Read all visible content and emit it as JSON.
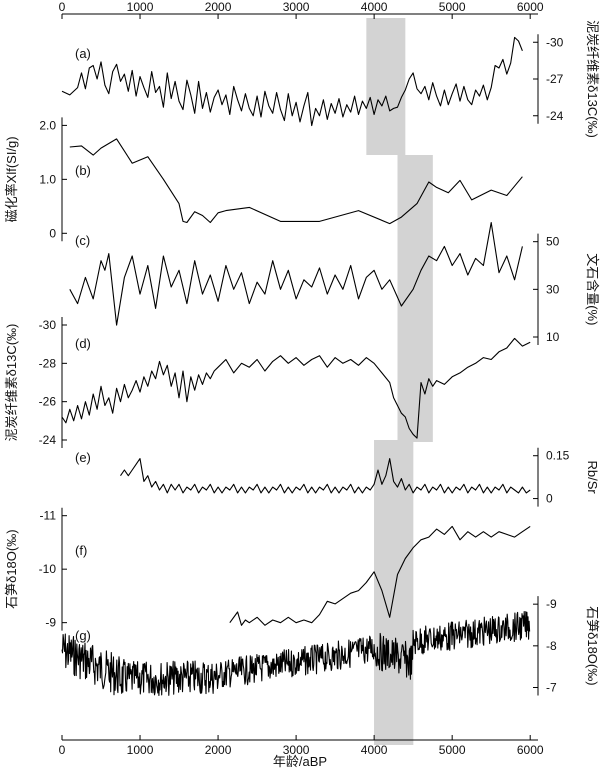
{
  "figure": {
    "x_axis_title": "年龄/aBP",
    "x_ticks": [
      0,
      1000,
      2000,
      3000,
      4000,
      5000,
      6000
    ],
    "shade_color": "#d3d3d3",
    "line_color": "#000000"
  },
  "chart_data": [
    {
      "type": "line",
      "panel_label": "(a)",
      "ylabel": "泥炭纤维素δ13C(‰)",
      "y_axis_side": "right",
      "y_ticks": [
        -30,
        -27,
        -24
      ],
      "ylim": [
        -23,
        -31
      ],
      "shaded_interval": [
        3900,
        4400
      ],
      "x": [
        0,
        100,
        200,
        250,
        300,
        350,
        400,
        450,
        500,
        550,
        600,
        650,
        700,
        750,
        800,
        850,
        900,
        950,
        1000,
        1050,
        1100,
        1150,
        1200,
        1250,
        1300,
        1350,
        1400,
        1450,
        1500,
        1550,
        1600,
        1650,
        1700,
        1750,
        1800,
        1850,
        1900,
        1950,
        2000,
        2050,
        2100,
        2150,
        2200,
        2250,
        2300,
        2350,
        2400,
        2450,
        2500,
        2550,
        2600,
        2650,
        2700,
        2750,
        2800,
        2850,
        2900,
        2950,
        3000,
        3050,
        3100,
        3150,
        3200,
        3250,
        3300,
        3350,
        3400,
        3450,
        3500,
        3550,
        3600,
        3650,
        3700,
        3750,
        3800,
        3850,
        3900,
        3950,
        4000,
        4050,
        4100,
        4150,
        4200,
        4250,
        4300,
        4350,
        4400,
        4450,
        4500,
        4550,
        4600,
        4650,
        4700,
        4750,
        4800,
        4850,
        4900,
        4950,
        5000,
        5050,
        5100,
        5150,
        5200,
        5250,
        5300,
        5350,
        5400,
        5450,
        5500,
        5550,
        5600,
        5650,
        5700,
        5750,
        5800,
        5850,
        5900
      ],
      "values": [
        -26,
        -25.7,
        -26.3,
        -27.5,
        -26.2,
        -27.9,
        -28.1,
        -27,
        -28.4,
        -26.5,
        -25.8,
        -27.6,
        -28.2,
        -26.8,
        -27.4,
        -26,
        -27.7,
        -25.6,
        -27.2,
        -26.3,
        -25.5,
        -27.6,
        -25.9,
        -26.4,
        -24.7,
        -27.5,
        -25.4,
        -26.8,
        -25.2,
        -24.5,
        -26.9,
        -25.7,
        -24.2,
        -26.8,
        -24.6,
        -25.9,
        -24.3,
        -25.5,
        -26.1,
        -24.9,
        -25.7,
        -24.1,
        -26.4,
        -25.3,
        -24.4,
        -25.8,
        -24.6,
        -24,
        -25.6,
        -23.9,
        -26,
        -24.8,
        -24.2,
        -25.9,
        -24.5,
        -23.6,
        -25.8,
        -24,
        -25.1,
        -23.5,
        -24.8,
        -25.9,
        -23.2,
        -24.6,
        -24,
        -25.3,
        -23.7,
        -25,
        -24.2,
        -25.4,
        -23.9,
        -24.9,
        -24.3,
        -25.6,
        -24.1,
        -25.2,
        -24.6,
        -25.5,
        -24.1,
        -25.3,
        -24.8,
        -25.6,
        -24.4,
        -24.6,
        -24.7,
        -25.5,
        -26.1,
        -27,
        -27.5,
        -26.2,
        -25.8,
        -26.4,
        -25.3,
        -26.7,
        -25.6,
        -24.8,
        -26.1,
        -24.9,
        -25.8,
        -26.6,
        -25.2,
        -26.4,
        -25.3,
        -24.9,
        -26.1,
        -25.6,
        -26.5,
        -25.3,
        -26.3,
        -28.1,
        -27.9,
        -28.6,
        -27.4,
        -28.3,
        -30.4,
        -30.1,
        -29.3
      ]
    },
    {
      "type": "line",
      "panel_label": "(b)",
      "ylabel": "磁化率Xlf(SI/g)",
      "y_axis_side": "left",
      "y_ticks": [
        0,
        1.0,
        2.0
      ],
      "y_tick_labels": [
        "0",
        "1.0",
        "2.0"
      ],
      "ylim": [
        -0.05,
        2.1
      ],
      "shaded_interval": [
        4300,
        4750
      ],
      "x": [
        100,
        250,
        400,
        500,
        700,
        900,
        1100,
        1300,
        1500,
        1550,
        1600,
        1700,
        1800,
        1900,
        2000,
        2100,
        2400,
        2800,
        3300,
        3800,
        4200,
        4350,
        4550,
        4700,
        4800,
        4950,
        5100,
        5250,
        5500,
        5700,
        5900
      ],
      "values": [
        1.6,
        1.62,
        1.45,
        1.58,
        1.75,
        1.3,
        1.42,
        1.0,
        0.55,
        0.22,
        0.2,
        0.4,
        0.33,
        0.2,
        0.38,
        0.42,
        0.48,
        0.22,
        0.22,
        0.42,
        0.18,
        0.3,
        0.55,
        0.95,
        0.85,
        0.75,
        0.98,
        0.62,
        0.8,
        0.7,
        1.05
      ]
    },
    {
      "type": "line",
      "panel_label": "(c)",
      "ylabel": "文石含量(%)",
      "y_axis_side": "right",
      "y_ticks": [
        10,
        30,
        50
      ],
      "ylim": [
        10,
        57
      ],
      "shaded_interval": [
        4300,
        4750
      ],
      "x": [
        100,
        200,
        300,
        400,
        500,
        550,
        600,
        700,
        800,
        900,
        1000,
        1100,
        1200,
        1300,
        1400,
        1500,
        1600,
        1700,
        1800,
        1900,
        2000,
        2100,
        2200,
        2300,
        2400,
        2500,
        2600,
        2700,
        2800,
        2900,
        3000,
        3100,
        3200,
        3300,
        3400,
        3500,
        3600,
        3700,
        3800,
        3900,
        4000,
        4100,
        4200,
        4350,
        4500,
        4600,
        4700,
        4800,
        4900,
        5000,
        5100,
        5200,
        5300,
        5400,
        5500,
        5600,
        5700,
        5800,
        5900
      ],
      "values": [
        30,
        24,
        35,
        26,
        42,
        38,
        45,
        15,
        35,
        44,
        28,
        40,
        22,
        44,
        31,
        38,
        24,
        42,
        28,
        36,
        25,
        40,
        30,
        37,
        24,
        33,
        28,
        42,
        30,
        38,
        26,
        34,
        31,
        39,
        28,
        36,
        30,
        40,
        26,
        35,
        38,
        30,
        34,
        23,
        30,
        38,
        44,
        42,
        48,
        40,
        45,
        36,
        43,
        40,
        58,
        37,
        44,
        34,
        48
      ]
    },
    {
      "type": "line",
      "panel_label": "(d)",
      "ylabel": "泥炭纤维素δ13C(‰)",
      "y_axis_side": "left",
      "y_ticks": [
        -30,
        -28,
        -26,
        -24
      ],
      "ylim": [
        -24,
        -30
      ],
      "shaded_interval": [
        4300,
        4750
      ],
      "x": [
        0,
        50,
        100,
        150,
        200,
        250,
        300,
        350,
        400,
        450,
        500,
        550,
        600,
        650,
        700,
        750,
        800,
        850,
        900,
        950,
        1000,
        1050,
        1100,
        1150,
        1200,
        1250,
        1300,
        1350,
        1400,
        1450,
        1500,
        1550,
        1600,
        1650,
        1700,
        1750,
        1800,
        1850,
        1900,
        1950,
        2000,
        2100,
        2200,
        2300,
        2400,
        2500,
        2600,
        2700,
        2800,
        2900,
        3000,
        3100,
        3200,
        3300,
        3400,
        3500,
        3600,
        3700,
        3800,
        3900,
        4000,
        4100,
        4200,
        4250,
        4300,
        4350,
        4400,
        4450,
        4500,
        4550,
        4600,
        4650,
        4700,
        4750,
        4800,
        4900,
        5000,
        5100,
        5200,
        5300,
        5400,
        5500,
        5600,
        5700,
        5800,
        5900,
        6000
      ],
      "values": [
        -25.2,
        -24.9,
        -25.6,
        -25,
        -25.8,
        -25.1,
        -26,
        -25.3,
        -26.4,
        -25.6,
        -26.8,
        -25.8,
        -26.2,
        -25.4,
        -26.7,
        -26,
        -26.9,
        -26.2,
        -26.6,
        -27.1,
        -26.5,
        -27.3,
        -26.8,
        -27.6,
        -27.2,
        -28.1,
        -27.4,
        -27.9,
        -26.8,
        -27.5,
        -26.2,
        -27.6,
        -26,
        -27.3,
        -26.6,
        -27.4,
        -26.9,
        -27.5,
        -27.2,
        -27.6,
        -27.8,
        -28.2,
        -27.5,
        -28,
        -27.8,
        -28.2,
        -27.6,
        -28.1,
        -28.4,
        -28,
        -28.3,
        -27.9,
        -28.2,
        -28.4,
        -27.8,
        -28.3,
        -28,
        -28.2,
        -27.9,
        -28.3,
        -28,
        -27.5,
        -27,
        -26.2,
        -25.8,
        -25.4,
        -25.2,
        -24.6,
        -24.3,
        -24.1,
        -27,
        -26.4,
        -27.2,
        -26.8,
        -27.1,
        -26.9,
        -27.3,
        -27.5,
        -27.8,
        -28,
        -28.3,
        -28.2,
        -28.6,
        -28.8,
        -29.3,
        -28.9,
        -29.1
      ]
    },
    {
      "type": "line",
      "panel_label": "(e)",
      "ylabel": "Rb/Sr",
      "y_axis_side": "right",
      "y_ticks": [
        0,
        0.15
      ],
      "y_tick_labels": [
        "0",
        "0.15"
      ],
      "ylim": [
        -0.005,
        0.17
      ],
      "shaded_interval": [
        4000,
        4500
      ],
      "x": [
        750,
        800,
        850,
        900,
        950,
        1000,
        1050,
        1100,
        1150,
        1200,
        1250,
        1300,
        1350,
        1400,
        1450,
        1500,
        1550,
        1600,
        1650,
        1700,
        1750,
        1800,
        1850,
        1900,
        1950,
        2000,
        2050,
        2100,
        2150,
        2200,
        2250,
        2300,
        2350,
        2400,
        2450,
        2500,
        2550,
        2600,
        2650,
        2700,
        2750,
        2800,
        2850,
        2900,
        2950,
        3000,
        3050,
        3100,
        3150,
        3200,
        3250,
        3300,
        3350,
        3400,
        3450,
        3500,
        3550,
        3600,
        3650,
        3700,
        3750,
        3800,
        3850,
        3900,
        3950,
        4000,
        4050,
        4100,
        4150,
        4200,
        4250,
        4300,
        4350,
        4400,
        4450,
        4500,
        4550,
        4600,
        4650,
        4700,
        4750,
        4800,
        4850,
        4900,
        4950,
        5000,
        5050,
        5100,
        5150,
        5200,
        5250,
        5300,
        5350,
        5400,
        5450,
        5500,
        5550,
        5600,
        5650,
        5700,
        5750,
        5800,
        5850,
        5900,
        5950,
        6000
      ],
      "values": [
        0.08,
        0.1,
        0.08,
        0.1,
        0.12,
        0.14,
        0.06,
        0.08,
        0.04,
        0.06,
        0.03,
        0.05,
        0.02,
        0.05,
        0.03,
        0.05,
        0.02,
        0.04,
        0.03,
        0.05,
        0.02,
        0.04,
        0.03,
        0.05,
        0.02,
        0.04,
        0.02,
        0.04,
        0.03,
        0.05,
        0.02,
        0.04,
        0.02,
        0.04,
        0.03,
        0.05,
        0.02,
        0.04,
        0.02,
        0.04,
        0.03,
        0.05,
        0.02,
        0.04,
        0.02,
        0.04,
        0.03,
        0.05,
        0.02,
        0.04,
        0.02,
        0.04,
        0.03,
        0.05,
        0.02,
        0.04,
        0.02,
        0.04,
        0.03,
        0.05,
        0.02,
        0.04,
        0.02,
        0.04,
        0.03,
        0.05,
        0.1,
        0.05,
        0.08,
        0.14,
        0.06,
        0.04,
        0.07,
        0.03,
        0.05,
        0.02,
        0.04,
        0.03,
        0.05,
        0.02,
        0.04,
        0.03,
        0.05,
        0.02,
        0.04,
        0.02,
        0.04,
        0.03,
        0.05,
        0.02,
        0.04,
        0.03,
        0.05,
        0.02,
        0.04,
        0.02,
        0.04,
        0.03,
        0.05,
        0.02,
        0.04,
        0.03,
        0.02,
        0.04,
        0.02,
        0.03
      ]
    },
    {
      "type": "line",
      "panel_label": "(f)",
      "ylabel": "石笋δ18O(‰)",
      "y_axis_side": "left",
      "y_ticks": [
        -11,
        -10,
        -9
      ],
      "ylim": [
        -8.9,
        -11.2
      ],
      "shaded_interval": [
        4000,
        4500
      ],
      "x": [
        2150,
        2250,
        2300,
        2350,
        2400,
        2500,
        2600,
        2700,
        2800,
        2900,
        3000,
        3100,
        3200,
        3300,
        3400,
        3500,
        3600,
        3700,
        3800,
        3900,
        4000,
        4100,
        4200,
        4300,
        4400,
        4500,
        4600,
        4700,
        4800,
        4900,
        5000,
        5100,
        5200,
        5300,
        5400,
        5500,
        5600,
        5700,
        5800,
        5900,
        6000
      ],
      "values": [
        -9,
        -9.2,
        -8.95,
        -9.05,
        -9,
        -9.1,
        -8.95,
        -9.05,
        -9,
        -9.1,
        -9,
        -9.05,
        -9,
        -9.15,
        -9.4,
        -9.35,
        -9.45,
        -9.55,
        -9.6,
        -9.75,
        -9.95,
        -9.6,
        -9.1,
        -9.9,
        -10.2,
        -10.4,
        -10.55,
        -10.6,
        -10.75,
        -10.65,
        -10.8,
        -10.55,
        -10.7,
        -10.6,
        -10.7,
        -10.6,
        -10.7,
        -10.65,
        -10.6,
        -10.7,
        -10.8
      ]
    },
    {
      "type": "line",
      "panel_label": "(g)",
      "ylabel": "石笋δ18O(‰)",
      "y_axis_side": "right",
      "y_ticks": [
        -9,
        -8,
        -7
      ],
      "ylim": [
        -6.7,
        -9.1
      ],
      "shaded_interval": [
        4000,
        4500
      ],
      "generated_series": {
        "x_range": [
          0,
          6000
        ],
        "segments": [
          {
            "x": [
              0,
              800
            ],
            "mean": [
              -7.9,
              -7.2
            ],
            "amplitude": 0.5
          },
          {
            "x": [
              800,
              2000
            ],
            "mean": [
              -7.2,
              -7.25
            ],
            "amplitude": 0.42
          },
          {
            "x": [
              2000,
              3500
            ],
            "mean": [
              -7.3,
              -7.75
            ],
            "amplitude": 0.35
          },
          {
            "x": [
              3500,
              4000
            ],
            "mean": [
              -7.75,
              -7.95
            ],
            "amplitude": 0.35
          },
          {
            "x": [
              4000,
              4500
            ],
            "mean": [
              -7.9,
              -7.6
            ],
            "amplitude": 0.45
          },
          {
            "x": [
              4500,
              6000
            ],
            "mean": [
              -8.1,
              -8.5
            ],
            "amplitude": 0.35
          }
        ]
      }
    }
  ]
}
